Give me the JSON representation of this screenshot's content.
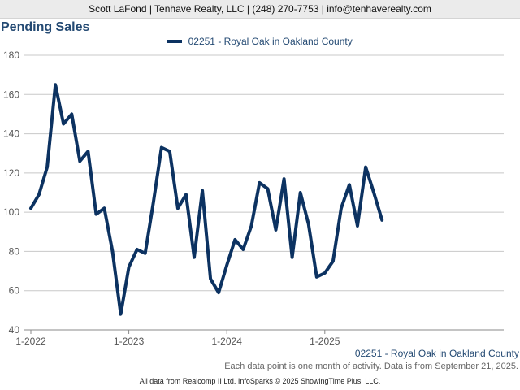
{
  "header": {
    "contact": "Scott LaFond | Tenhave Realty, LLC | (248) 270-7753 | info@tenhaverealty.com"
  },
  "colors": {
    "line": "#0c3261",
    "title": "#244a73",
    "grid": "#c8c8c8",
    "header_bg": "#ebebeb"
  },
  "chart_data": {
    "type": "line",
    "title": "Pending Sales",
    "xlabel": "",
    "ylabel": "",
    "ylim": [
      40,
      180
    ],
    "yticks": [
      40,
      60,
      80,
      100,
      120,
      140,
      160,
      180
    ],
    "xtick_labels": [
      "1-2022",
      "1-2023",
      "1-2024",
      "1-2025"
    ],
    "grid": "horizontal",
    "legend_position": "top-center",
    "x": [
      "1-2022",
      "2-2022",
      "3-2022",
      "4-2022",
      "5-2022",
      "6-2022",
      "7-2022",
      "8-2022",
      "9-2022",
      "10-2022",
      "11-2022",
      "12-2022",
      "1-2023",
      "2-2023",
      "3-2023",
      "4-2023",
      "5-2023",
      "6-2023",
      "7-2023",
      "8-2023",
      "9-2023",
      "10-2023",
      "11-2023",
      "12-2023",
      "1-2024",
      "2-2024",
      "3-2024",
      "4-2024",
      "5-2024",
      "6-2024",
      "7-2024",
      "8-2024",
      "9-2024",
      "10-2024",
      "11-2024",
      "12-2024",
      "1-2025",
      "2-2025",
      "3-2025",
      "4-2025",
      "5-2025",
      "6-2025",
      "7-2025",
      "8-2025"
    ],
    "series": [
      {
        "name": "02251 - Royal Oak in Oakland County",
        "values": [
          102,
          109,
          123,
          165,
          145,
          150,
          126,
          131,
          99,
          102,
          80,
          48,
          72,
          81,
          79,
          105,
          133,
          131,
          102,
          109,
          77,
          111,
          66,
          59,
          73,
          86,
          81,
          93,
          115,
          112,
          91,
          117,
          77,
          110,
          94,
          67,
          69,
          75,
          102,
          114,
          93,
          123,
          110,
          96
        ]
      }
    ]
  },
  "footer": {
    "series_label": "02251 - Royal Oak in Oakland County",
    "note": "Each data point is one month of activity. Data is from September 21, 2025.",
    "credit": "All data from Realcomp II Ltd. InfoSparks © 2025 ShowingTime Plus, LLC."
  }
}
